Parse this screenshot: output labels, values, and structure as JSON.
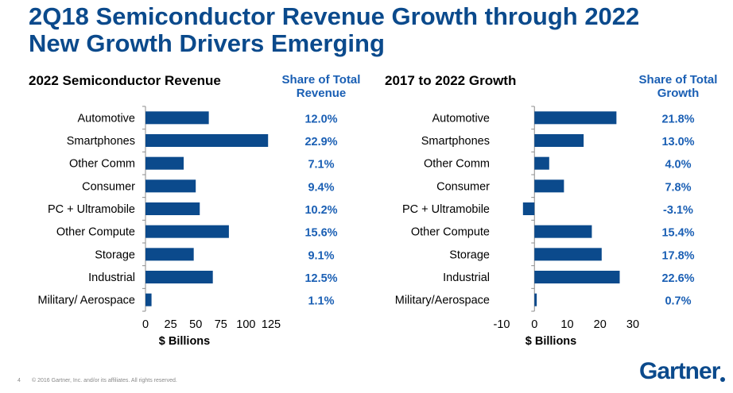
{
  "header": {
    "title_line1": "2Q18 Semiconductor Revenue Growth through 2022",
    "title_line2": "New Growth Drivers Emerging"
  },
  "footer": {
    "page_number": "4",
    "copyright": "© 2016 Gartner, Inc. and/or its affiliates. All rights reserved.",
    "logo": "Gartner"
  },
  "colors": {
    "bar": "#0b4a8c",
    "title": "#0b4a8c",
    "share": "#1a5fb4"
  },
  "chart_data": [
    {
      "type": "bar",
      "orientation": "horizontal",
      "title": "2022 Semiconductor Revenue",
      "share_header": "Share of Total Revenue",
      "categories": [
        "Automotive",
        "Smartphones",
        "Other Comm",
        "Consumer",
        "PC + Ultramobile",
        "Other Compute",
        "Storage",
        "Industrial",
        "Military/ Aerospace"
      ],
      "values": [
        63,
        122,
        38,
        50,
        54,
        83,
        48,
        67,
        6
      ],
      "share": [
        "12.0%",
        "22.9%",
        "7.1%",
        "9.4%",
        "10.2%",
        "15.6%",
        "9.1%",
        "12.5%",
        "1.1%"
      ],
      "xlabel": "$ Billions",
      "xlim": [
        0,
        125
      ],
      "xticks": [
        "0",
        "25",
        "50",
        "75",
        "100",
        "125"
      ],
      "xtick_values": [
        0,
        25,
        50,
        75,
        100,
        125
      ]
    },
    {
      "type": "bar",
      "orientation": "horizontal",
      "title": "2017 to 2022 Growth",
      "share_header": "Share of Total Growth",
      "categories": [
        "Automotive",
        "Smartphones",
        "Other Comm",
        "Consumer",
        "PC + Ultramobile",
        "Other Compute",
        "Storage",
        "Industrial",
        "Military/Aerospace"
      ],
      "values": [
        25,
        15,
        4.5,
        9,
        -3.5,
        17.5,
        20.5,
        26,
        0.7
      ],
      "share": [
        "21.8%",
        "13.0%",
        "4.0%",
        "7.8%",
        "-3.1%",
        "15.4%",
        "17.8%",
        "22.6%",
        "0.7%"
      ],
      "xlabel": "$ Billions",
      "xlim": [
        -10,
        30
      ],
      "xticks": [
        "-10",
        "0",
        "10",
        "20",
        "30"
      ],
      "xtick_values": [
        -10,
        0,
        10,
        20,
        30
      ]
    }
  ]
}
